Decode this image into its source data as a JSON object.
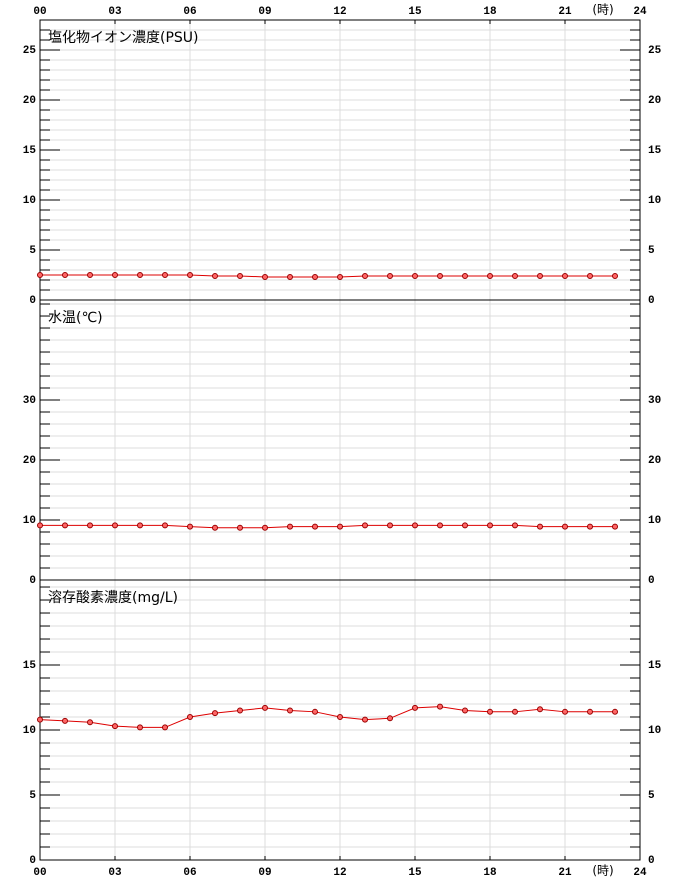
{
  "chart_data": [
    {
      "type": "line",
      "title": "塩化物イオン濃度(PSU)",
      "x_unit": "(時)",
      "x": [
        0,
        1,
        2,
        3,
        4,
        5,
        6,
        7,
        8,
        9,
        10,
        11,
        12,
        13,
        14,
        15,
        16,
        17,
        18,
        19,
        20,
        21,
        22,
        23
      ],
      "xlim": [
        0,
        24
      ],
      "xticks": [
        {
          "value": 0,
          "label": "00"
        },
        {
          "value": 3,
          "label": "03"
        },
        {
          "value": 6,
          "label": "06"
        },
        {
          "value": 9,
          "label": "09"
        },
        {
          "value": 12,
          "label": "12"
        },
        {
          "value": 15,
          "label": "15"
        },
        {
          "value": 18,
          "label": "18"
        },
        {
          "value": 21,
          "label": "21"
        },
        {
          "value": 24,
          "label": "24"
        }
      ],
      "ylim": [
        0,
        28
      ],
      "yticks": [
        0,
        5,
        10,
        15,
        20,
        25
      ],
      "minor_step": 1,
      "grid": true,
      "color": "#dd0000",
      "values": [
        2.5,
        2.5,
        2.5,
        2.5,
        2.5,
        2.5,
        2.5,
        2.4,
        2.4,
        2.3,
        2.3,
        2.3,
        2.3,
        2.4,
        2.4,
        2.4,
        2.4,
        2.4,
        2.4,
        2.4,
        2.4,
        2.4,
        2.4,
        2.4
      ]
    },
    {
      "type": "line",
      "title": "水温(℃)",
      "x": [
        0,
        1,
        2,
        3,
        4,
        5,
        6,
        7,
        8,
        9,
        10,
        11,
        12,
        13,
        14,
        15,
        16,
        17,
        18,
        19,
        20,
        21,
        22,
        23
      ],
      "xlim": [
        0,
        24
      ],
      "ylim": [
        0,
        46.67
      ],
      "yticks": [
        0,
        10,
        20,
        30
      ],
      "minor_step": 2,
      "grid": true,
      "color": "#dd0000",
      "values": [
        9.1,
        9.1,
        9.1,
        9.1,
        9.1,
        9.1,
        8.9,
        8.7,
        8.7,
        8.7,
        8.9,
        8.9,
        8.9,
        9.1,
        9.1,
        9.1,
        9.1,
        9.1,
        9.1,
        9.1,
        8.9,
        8.9,
        8.9,
        8.9
      ]
    },
    {
      "type": "line",
      "title": "溶存酸素濃度(mg/L)",
      "x_unit": "(時)",
      "x": [
        0,
        1,
        2,
        3,
        4,
        5,
        6,
        7,
        8,
        9,
        10,
        11,
        12,
        13,
        14,
        15,
        16,
        17,
        18,
        19,
        20,
        21,
        22,
        23
      ],
      "xlim": [
        0,
        24
      ],
      "xticks": [
        {
          "value": 0,
          "label": "00"
        },
        {
          "value": 3,
          "label": "03"
        },
        {
          "value": 6,
          "label": "06"
        },
        {
          "value": 9,
          "label": "09"
        },
        {
          "value": 12,
          "label": "12"
        },
        {
          "value": 15,
          "label": "15"
        },
        {
          "value": 18,
          "label": "18"
        },
        {
          "value": 21,
          "label": "21"
        },
        {
          "value": 24,
          "label": "24"
        }
      ],
      "ylim": [
        0,
        21.54
      ],
      "yticks": [
        0,
        5,
        10,
        15
      ],
      "minor_step": 1,
      "grid": true,
      "color": "#dd0000",
      "values": [
        10.8,
        10.7,
        10.6,
        10.3,
        10.2,
        10.2,
        11.0,
        11.3,
        11.5,
        11.7,
        11.5,
        11.4,
        11.0,
        10.8,
        10.9,
        11.7,
        11.8,
        11.5,
        11.4,
        11.4,
        11.6,
        11.4,
        11.4,
        11.4
      ]
    }
  ]
}
